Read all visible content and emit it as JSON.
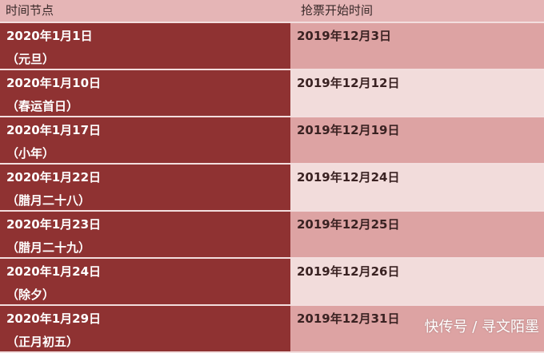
{
  "header": {
    "col1": "时间节点",
    "col2": "抢票开始时间"
  },
  "rows": [
    {
      "date": "2020年1月1日",
      "note": "（元旦）",
      "start": "2019年12月3日"
    },
    {
      "date": "2020年1月10日",
      "note": "（春运首日）",
      "start": "2019年12月12日"
    },
    {
      "date": "2020年1月17日",
      "note": "（小年）",
      "start": "2019年12月19日"
    },
    {
      "date": "2020年1月22日",
      "note": "（腊月二十八）",
      "start": "2019年12月24日"
    },
    {
      "date": "2020年1月23日",
      "note": "（腊月二十九）",
      "start": "2019年12月25日"
    },
    {
      "date": "2020年1月24日",
      "note": "（除夕）",
      "start": "2019年12月26日"
    },
    {
      "date": "2020年1月29日",
      "note": "（正月初五）",
      "start": "2019年12月31日"
    }
  ],
  "watermark": "快传号 / 寻文陌墨",
  "colors": {
    "header": "#e5b5b6",
    "left": "#8f3232",
    "right_dark": "#dda3a3",
    "right_light": "#f2dcdb"
  }
}
